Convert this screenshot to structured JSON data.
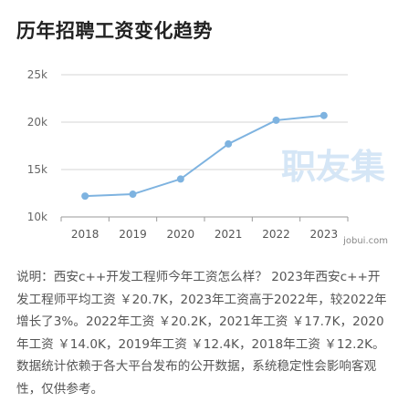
{
  "title": "历年招聘工资变化趋势",
  "chart_data": {
    "type": "line",
    "x": [
      "2018",
      "2019",
      "2020",
      "2021",
      "2022",
      "2023"
    ],
    "series": [
      {
        "values": [
          12.2,
          12.4,
          14.0,
          17.7,
          20.2,
          20.7
        ]
      }
    ],
    "ylim": [
      10,
      25
    ],
    "yticks": [
      10,
      15,
      20,
      25
    ],
    "ytick_labels": [
      "10k",
      "15k",
      "20k",
      "25k"
    ],
    "grid": true,
    "line_color": "#7eb3e0",
    "watermark": "职友集",
    "source": "jobui.com"
  },
  "description": "说明：西安c++开发工程师今年工资怎么样？ 2023年西安c++开发工程师平均工资 ￥20.7K，2023年工资高于2022年，较2022年增长了3%。2022年工资 ￥20.2K，2021年工资 ￥17.7K，2020年工资 ￥14.0K，2019年工资 ￥12.4K，2018年工资 ￥12.2K。数据统计依赖于各大平台发布的公开数据，系统稳定性会影响客观性，仅供参考。"
}
